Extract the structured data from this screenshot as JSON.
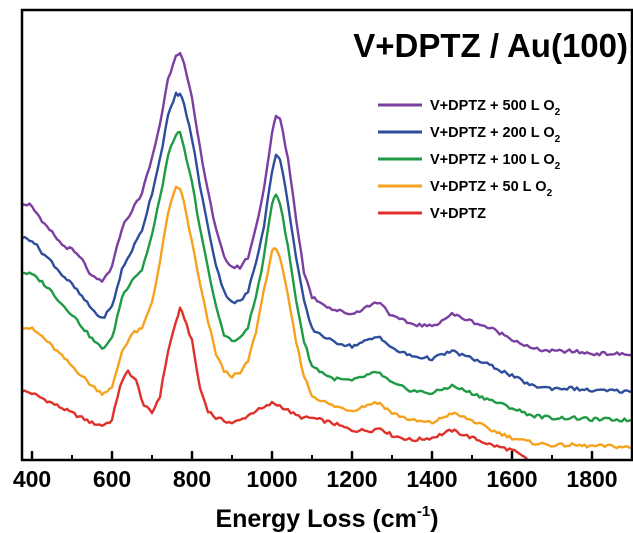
{
  "chart_data": {
    "type": "line",
    "title": "V+DPTZ / Au(100)",
    "xlabel": "Energy Loss (cm",
    "xlabel_sup": "-1",
    "xlabel_close": ")",
    "ylabel": "",
    "xlim": [
      375,
      1900
    ],
    "ylim": [
      -0.1,
      9.0
    ],
    "xticks": [
      "400",
      "600",
      "800",
      "1000",
      "1200",
      "1400",
      "1600",
      "1800"
    ],
    "y_ticks_shown": false,
    "grid": false,
    "legend_position": "top-right",
    "series": [
      {
        "name": "V+DPTZ + 500 L O",
        "name_sub": "2",
        "color": "#7b3fa2",
        "x": [
          375,
          400,
          425,
          450,
          475,
          500,
          525,
          550,
          575,
          600,
          625,
          650,
          675,
          700,
          720,
          740,
          760,
          770,
          780,
          800,
          820,
          840,
          860,
          880,
          900,
          920,
          940,
          960,
          980,
          1000,
          1010,
          1020,
          1040,
          1060,
          1080,
          1100,
          1150,
          1200,
          1250,
          1270,
          1300,
          1350,
          1400,
          1450,
          1500,
          1550,
          1600,
          1650,
          1700,
          1750,
          1800,
          1850,
          1900
        ],
        "y": [
          5.1,
          5.05,
          4.7,
          4.5,
          4.25,
          4.15,
          3.95,
          3.6,
          3.5,
          3.8,
          4.6,
          4.95,
          5.3,
          6.0,
          6.7,
          7.6,
          8.1,
          8.15,
          7.9,
          7.2,
          6.2,
          5.35,
          4.55,
          4.0,
          3.8,
          3.8,
          4.0,
          4.6,
          5.4,
          6.5,
          6.85,
          6.8,
          6.0,
          4.8,
          3.7,
          3.2,
          2.95,
          2.85,
          3.05,
          3.1,
          2.8,
          2.65,
          2.6,
          2.85,
          2.7,
          2.55,
          2.35,
          2.15,
          2.1,
          2.1,
          2.05,
          2.05,
          2.03
        ]
      },
      {
        "name": "V+DPTZ + 200 L O",
        "name_sub": "2",
        "color": "#2e4e9c",
        "x": [
          375,
          400,
          425,
          450,
          475,
          500,
          525,
          550,
          575,
          600,
          625,
          650,
          675,
          700,
          720,
          740,
          760,
          770,
          780,
          800,
          820,
          840,
          860,
          880,
          900,
          920,
          940,
          960,
          980,
          1000,
          1010,
          1020,
          1040,
          1060,
          1080,
          1100,
          1150,
          1200,
          1250,
          1270,
          1300,
          1350,
          1400,
          1450,
          1500,
          1550,
          1600,
          1650,
          1700,
          1750,
          1800,
          1850,
          1900
        ],
        "y": [
          4.4,
          4.35,
          4.1,
          3.9,
          3.65,
          3.45,
          3.2,
          2.95,
          2.75,
          3.0,
          3.75,
          4.15,
          4.55,
          5.3,
          6.0,
          6.85,
          7.3,
          7.3,
          7.1,
          6.4,
          5.45,
          4.6,
          3.85,
          3.3,
          3.1,
          3.1,
          3.3,
          3.9,
          4.65,
          5.75,
          6.05,
          6.0,
          5.1,
          4.0,
          3.1,
          2.55,
          2.3,
          2.2,
          2.35,
          2.4,
          2.15,
          2.0,
          1.95,
          2.1,
          1.95,
          1.8,
          1.6,
          1.4,
          1.35,
          1.35,
          1.3,
          1.3,
          1.28
        ]
      },
      {
        "name": "V+DPTZ + 100 L O",
        "name_sub": "2",
        "color": "#1f9a45",
        "x": [
          375,
          400,
          425,
          450,
          475,
          500,
          525,
          550,
          575,
          600,
          625,
          650,
          675,
          700,
          720,
          740,
          760,
          770,
          780,
          800,
          820,
          840,
          860,
          880,
          900,
          920,
          940,
          960,
          980,
          1000,
          1010,
          1020,
          1040,
          1060,
          1080,
          1100,
          1150,
          1200,
          1250,
          1270,
          1300,
          1350,
          1400,
          1450,
          1500,
          1550,
          1600,
          1650,
          1700,
          1750,
          1800,
          1850,
          1900
        ],
        "y": [
          3.7,
          3.65,
          3.5,
          3.3,
          3.05,
          2.85,
          2.6,
          2.35,
          2.15,
          2.35,
          3.2,
          3.55,
          3.75,
          4.45,
          5.2,
          6.05,
          6.5,
          6.5,
          6.2,
          5.5,
          4.6,
          3.75,
          3.0,
          2.45,
          2.3,
          2.35,
          2.6,
          3.2,
          4.0,
          5.1,
          5.3,
          5.1,
          4.2,
          3.15,
          2.3,
          1.8,
          1.55,
          1.5,
          1.65,
          1.65,
          1.45,
          1.3,
          1.25,
          1.4,
          1.25,
          1.1,
          0.95,
          0.8,
          0.75,
          0.75,
          0.72,
          0.72,
          0.7
        ]
      },
      {
        "name": "V+DPTZ + 50 L O",
        "name_sub": "2",
        "color": "#f5a21f",
        "x": [
          375,
          400,
          425,
          450,
          475,
          500,
          525,
          550,
          575,
          600,
          625,
          650,
          675,
          700,
          720,
          740,
          760,
          770,
          780,
          800,
          820,
          840,
          860,
          880,
          900,
          920,
          940,
          960,
          980,
          1000,
          1010,
          1020,
          1040,
          1060,
          1080,
          1100,
          1150,
          1200,
          1250,
          1270,
          1300,
          1350,
          1400,
          1450,
          1500,
          1550,
          1600,
          1650,
          1700,
          1750,
          1800,
          1850,
          1900
        ],
        "y": [
          2.6,
          2.55,
          2.4,
          2.2,
          2.0,
          1.8,
          1.6,
          1.4,
          1.25,
          1.35,
          2.1,
          2.45,
          2.55,
          3.1,
          3.9,
          4.9,
          5.4,
          5.4,
          5.1,
          4.3,
          3.45,
          2.7,
          2.05,
          1.7,
          1.6,
          1.65,
          1.9,
          2.5,
          3.35,
          4.1,
          4.2,
          4.0,
          3.2,
          2.3,
          1.6,
          1.2,
          1.0,
          0.9,
          1.05,
          1.05,
          0.85,
          0.7,
          0.65,
          0.85,
          0.7,
          0.5,
          0.35,
          0.25,
          0.2,
          0.2,
          0.18,
          0.18,
          0.15
        ]
      },
      {
        "name": "V+DPTZ",
        "name_sub": "",
        "color": "#e0302a",
        "x": [
          375,
          400,
          425,
          450,
          475,
          500,
          525,
          550,
          575,
          600,
          620,
          640,
          660,
          680,
          700,
          720,
          740,
          760,
          770,
          780,
          800,
          820,
          840,
          860,
          880,
          900,
          920,
          940,
          960,
          980,
          1000,
          1020,
          1040,
          1060,
          1080,
          1100,
          1150,
          1200,
          1250,
          1270,
          1300,
          1350,
          1400,
          1450,
          1500,
          1550,
          1600,
          1650,
          1700,
          1750,
          1800,
          1850,
          1900
        ],
        "y": [
          1.3,
          1.25,
          1.15,
          1.05,
          0.95,
          0.85,
          0.75,
          0.65,
          0.6,
          0.7,
          1.4,
          1.7,
          1.5,
          1.0,
          0.85,
          1.2,
          2.1,
          2.7,
          2.95,
          2.8,
          2.3,
          1.35,
          0.9,
          0.75,
          0.7,
          0.65,
          0.7,
          0.8,
          0.9,
          0.95,
          1.05,
          1.0,
          0.9,
          0.8,
          0.75,
          0.75,
          0.65,
          0.5,
          0.5,
          0.55,
          0.4,
          0.3,
          0.35,
          0.5,
          0.35,
          0.2,
          0.1,
          -0.15,
          -0.25,
          -0.3,
          -0.32,
          -0.33,
          -0.35
        ]
      }
    ]
  }
}
